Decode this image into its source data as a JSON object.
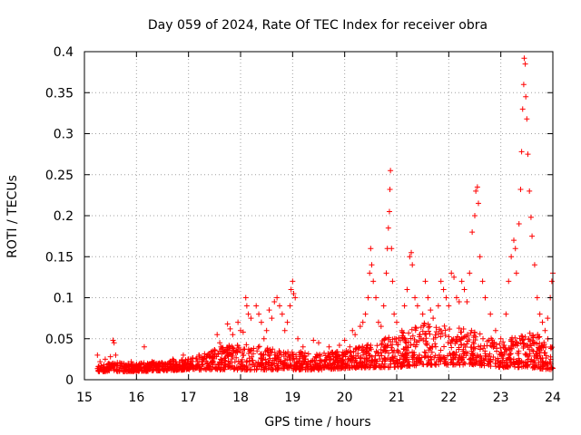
{
  "chart_data": {
    "type": "scatter",
    "title": "Day 059 of 2024, Rate Of TEC Index for receiver obra",
    "xlabel": "GPS time / hours",
    "ylabel": "ROTI / TECUs",
    "xlim": [
      15,
      24
    ],
    "ylim": [
      0,
      0.4
    ],
    "xticks": [
      15,
      16,
      17,
      18,
      19,
      20,
      21,
      22,
      23,
      24
    ],
    "yticks": [
      0,
      0.05,
      0.1,
      0.15,
      0.2,
      0.25,
      0.3,
      0.35,
      0.4
    ],
    "xtick_labels": [
      "15",
      "16",
      "17",
      "18",
      "19",
      "20",
      "21",
      "22",
      "23",
      "24"
    ],
    "ytick_labels": [
      "0",
      "0.05",
      "0.1",
      "0.15",
      "0.2",
      "0.25",
      "0.3",
      "0.35",
      "0.4"
    ],
    "grid": true,
    "marker": "+",
    "marker_color": "#ff0000",
    "series": [
      {
        "name": "ROTI",
        "points": [
          [
            15.25,
            0.03
          ],
          [
            15.3,
            0.022
          ],
          [
            15.4,
            0.025
          ],
          [
            15.5,
            0.028
          ],
          [
            15.55,
            0.048
          ],
          [
            15.57,
            0.045
          ],
          [
            15.6,
            0.03
          ],
          [
            15.7,
            0.02
          ],
          [
            15.8,
            0.018
          ],
          [
            15.9,
            0.022
          ],
          [
            16.0,
            0.018
          ],
          [
            16.1,
            0.02
          ],
          [
            16.15,
            0.04
          ],
          [
            16.3,
            0.022
          ],
          [
            16.5,
            0.02
          ],
          [
            16.7,
            0.025
          ],
          [
            16.9,
            0.03
          ],
          [
            17.0,
            0.025
          ],
          [
            17.2,
            0.03
          ],
          [
            17.4,
            0.028
          ],
          [
            17.55,
            0.055
          ],
          [
            17.6,
            0.045
          ],
          [
            17.75,
            0.068
          ],
          [
            17.8,
            0.062
          ],
          [
            17.85,
            0.055
          ],
          [
            17.95,
            0.07
          ],
          [
            18.0,
            0.06
          ],
          [
            18.05,
            0.058
          ],
          [
            18.1,
            0.1
          ],
          [
            18.12,
            0.09
          ],
          [
            18.15,
            0.08
          ],
          [
            18.2,
            0.075
          ],
          [
            18.3,
            0.09
          ],
          [
            18.35,
            0.08
          ],
          [
            18.4,
            0.07
          ],
          [
            18.45,
            0.05
          ],
          [
            18.5,
            0.06
          ],
          [
            18.55,
            0.085
          ],
          [
            18.6,
            0.075
          ],
          [
            18.65,
            0.095
          ],
          [
            18.7,
            0.1
          ],
          [
            18.75,
            0.09
          ],
          [
            18.8,
            0.08
          ],
          [
            18.85,
            0.06
          ],
          [
            18.9,
            0.07
          ],
          [
            18.95,
            0.09
          ],
          [
            18.97,
            0.11
          ],
          [
            19.0,
            0.12
          ],
          [
            19.02,
            0.105
          ],
          [
            19.05,
            0.1
          ],
          [
            19.1,
            0.05
          ],
          [
            19.2,
            0.04
          ],
          [
            19.4,
            0.048
          ],
          [
            19.5,
            0.045
          ],
          [
            19.7,
            0.04
          ],
          [
            19.9,
            0.042
          ],
          [
            20.0,
            0.048
          ],
          [
            20.1,
            0.04
          ],
          [
            20.15,
            0.06
          ],
          [
            20.2,
            0.055
          ],
          [
            20.3,
            0.065
          ],
          [
            20.35,
            0.07
          ],
          [
            20.4,
            0.08
          ],
          [
            20.45,
            0.1
          ],
          [
            20.48,
            0.13
          ],
          [
            20.5,
            0.16
          ],
          [
            20.52,
            0.14
          ],
          [
            20.55,
            0.12
          ],
          [
            20.6,
            0.1
          ],
          [
            20.65,
            0.07
          ],
          [
            20.7,
            0.065
          ],
          [
            20.75,
            0.09
          ],
          [
            20.8,
            0.13
          ],
          [
            20.82,
            0.16
          ],
          [
            20.84,
            0.185
          ],
          [
            20.86,
            0.205
          ],
          [
            20.87,
            0.232
          ],
          [
            20.88,
            0.255
          ],
          [
            20.9,
            0.16
          ],
          [
            20.92,
            0.12
          ],
          [
            20.95,
            0.08
          ],
          [
            21.0,
            0.07
          ],
          [
            21.1,
            0.06
          ],
          [
            21.15,
            0.09
          ],
          [
            21.2,
            0.11
          ],
          [
            21.25,
            0.15
          ],
          [
            21.28,
            0.155
          ],
          [
            21.3,
            0.14
          ],
          [
            21.35,
            0.1
          ],
          [
            21.4,
            0.09
          ],
          [
            21.5,
            0.08
          ],
          [
            21.55,
            0.12
          ],
          [
            21.6,
            0.1
          ],
          [
            21.65,
            0.085
          ],
          [
            21.7,
            0.075
          ],
          [
            21.8,
            0.09
          ],
          [
            21.85,
            0.12
          ],
          [
            21.9,
            0.11
          ],
          [
            21.95,
            0.1
          ],
          [
            22.0,
            0.09
          ],
          [
            22.05,
            0.13
          ],
          [
            22.1,
            0.125
          ],
          [
            22.15,
            0.1
          ],
          [
            22.2,
            0.095
          ],
          [
            22.25,
            0.12
          ],
          [
            22.3,
            0.11
          ],
          [
            22.35,
            0.095
          ],
          [
            22.4,
            0.13
          ],
          [
            22.45,
            0.18
          ],
          [
            22.5,
            0.2
          ],
          [
            22.52,
            0.23
          ],
          [
            22.55,
            0.235
          ],
          [
            22.57,
            0.215
          ],
          [
            22.6,
            0.15
          ],
          [
            22.65,
            0.12
          ],
          [
            22.7,
            0.1
          ],
          [
            22.8,
            0.08
          ],
          [
            22.9,
            0.06
          ],
          [
            23.0,
            0.05
          ],
          [
            23.1,
            0.08
          ],
          [
            23.15,
            0.12
          ],
          [
            23.2,
            0.15
          ],
          [
            23.25,
            0.17
          ],
          [
            23.28,
            0.16
          ],
          [
            23.3,
            0.13
          ],
          [
            23.35,
            0.19
          ],
          [
            23.38,
            0.232
          ],
          [
            23.4,
            0.278
          ],
          [
            23.42,
            0.33
          ],
          [
            23.44,
            0.36
          ],
          [
            23.45,
            0.392
          ],
          [
            23.47,
            0.385
          ],
          [
            23.48,
            0.345
          ],
          [
            23.5,
            0.318
          ],
          [
            23.52,
            0.275
          ],
          [
            23.55,
            0.23
          ],
          [
            23.58,
            0.198
          ],
          [
            23.6,
            0.175
          ],
          [
            23.65,
            0.14
          ],
          [
            23.7,
            0.1
          ],
          [
            23.75,
            0.08
          ],
          [
            23.8,
            0.07
          ],
          [
            23.85,
            0.06
          ],
          [
            23.9,
            0.075
          ],
          [
            23.95,
            0.1
          ],
          [
            23.98,
            0.12
          ],
          [
            24.0,
            0.13
          ]
        ]
      }
    ],
    "envelope": {
      "description": "dense baseline band of ROTI samples",
      "x_start": 15.25,
      "x_end": 24.0,
      "anchors": [
        [
          15.25,
          0.01,
          0.022
        ],
        [
          16.0,
          0.01,
          0.02
        ],
        [
          17.0,
          0.012,
          0.025
        ],
        [
          17.6,
          0.012,
          0.04
        ],
        [
          18.0,
          0.012,
          0.045
        ],
        [
          18.5,
          0.012,
          0.04
        ],
        [
          19.0,
          0.012,
          0.035
        ],
        [
          19.5,
          0.012,
          0.032
        ],
        [
          20.0,
          0.014,
          0.035
        ],
        [
          20.5,
          0.015,
          0.045
        ],
        [
          21.0,
          0.015,
          0.055
        ],
        [
          21.5,
          0.018,
          0.07
        ],
        [
          22.0,
          0.018,
          0.065
        ],
        [
          22.5,
          0.018,
          0.06
        ],
        [
          23.0,
          0.015,
          0.045
        ],
        [
          23.5,
          0.015,
          0.06
        ],
        [
          24.0,
          0.012,
          0.05
        ]
      ]
    }
  }
}
